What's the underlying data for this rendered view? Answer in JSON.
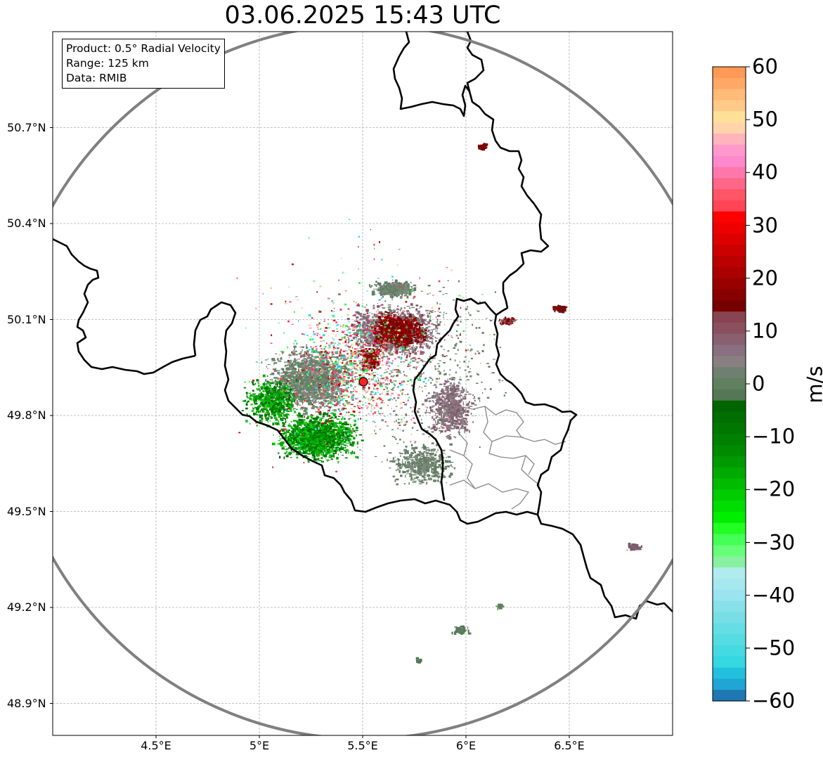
{
  "title": "03.06.2025 15:43 UTC",
  "info_box": {
    "product": "Product: 0.5° Radial Velocity",
    "range": "Range: 125 km",
    "data": "Data: RMIB"
  },
  "map": {
    "lon_range": [
      4.0,
      7.0
    ],
    "lat_range": [
      48.8,
      51.0
    ],
    "radar_site": {
      "lon": 5.505,
      "lat": 49.914
    },
    "lat_ticks": [
      {
        "value": 50.7,
        "label": "50.7°N"
      },
      {
        "value": 50.4,
        "label": "50.4°N"
      },
      {
        "value": 50.1,
        "label": "50.1°N"
      },
      {
        "value": 49.8,
        "label": "49.8°N"
      },
      {
        "value": 49.5,
        "label": "49.5°N"
      },
      {
        "value": 49.2,
        "label": "49.2°N"
      },
      {
        "value": 48.9,
        "label": "48.9°N"
      }
    ],
    "lon_ticks": [
      {
        "value": 4.5,
        "label": "4.5°E"
      },
      {
        "value": 5.0,
        "label": "5°E"
      },
      {
        "value": 5.5,
        "label": "5.5°E"
      },
      {
        "value": 6.0,
        "label": "6°E"
      },
      {
        "value": 6.5,
        "label": "6.5°E"
      }
    ],
    "gridlines": true
  },
  "colorbar": {
    "label": "m/s",
    "min": -60,
    "max": 60,
    "ticks": [
      {
        "value": 60,
        "label": "60"
      },
      {
        "value": 50,
        "label": "50"
      },
      {
        "value": 40,
        "label": "40"
      },
      {
        "value": 30,
        "label": "30"
      },
      {
        "value": 20,
        "label": "20"
      },
      {
        "value": 10,
        "label": "10"
      },
      {
        "value": 0,
        "label": "0"
      },
      {
        "value": -10,
        "label": "−10"
      },
      {
        "value": -20,
        "label": "−20"
      },
      {
        "value": -30,
        "label": "−30"
      },
      {
        "value": -40,
        "label": "−40"
      },
      {
        "value": -50,
        "label": "−50"
      },
      {
        "value": -60,
        "label": "−60"
      }
    ],
    "colors_top_to_bottom": [
      "#ff9955",
      "#ffa866",
      "#ffbb77",
      "#ffc988",
      "#ffe099",
      "#ffd4aa",
      "#ffb3bb",
      "#ff99cc",
      "#ff88cc",
      "#ff77aa",
      "#ff6688",
      "#ff5566",
      "#ff4455",
      "#ff0000",
      "#ee0000",
      "#dd0000",
      "#cc0000",
      "#bb0000",
      "#aa0000",
      "#990000",
      "#880000",
      "#770000",
      "#884450",
      "#8b5060",
      "#886070",
      "#887080",
      "#888080",
      "#708070",
      "#608060",
      "#557755",
      "#006600",
      "#006e00",
      "#007700",
      "#008000",
      "#008a00",
      "#009900",
      "#00aa00",
      "#00bb00",
      "#00cc00",
      "#00dd00",
      "#00ee00",
      "#22ff22",
      "#44ff55",
      "#66ff77",
      "#88f0a0",
      "#b0ecee",
      "#a6e8ee",
      "#99e4ee",
      "#88e0e8",
      "#77dee6",
      "#66dde4",
      "#55dce2",
      "#44dae2",
      "#33d8e0",
      "#22c0dc",
      "#20a6d4",
      "#1f77b4"
    ]
  }
}
